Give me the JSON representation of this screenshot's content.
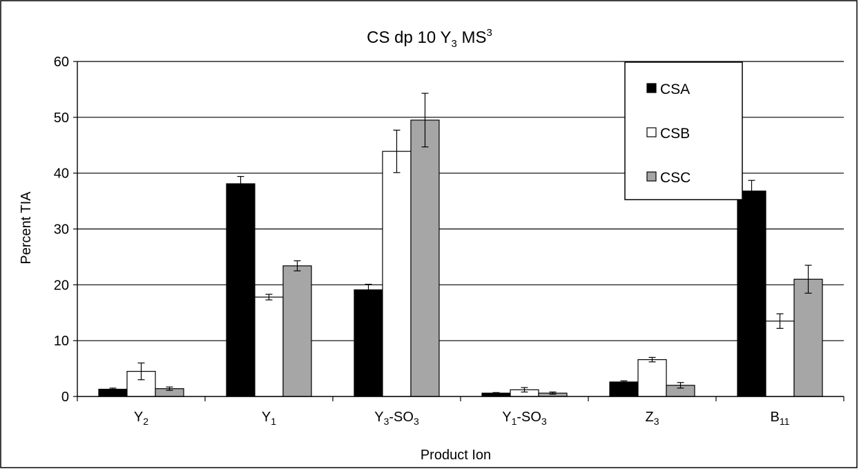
{
  "chart_data": {
    "type": "bar",
    "title": "CS dp 10 Y",
    "title_sub": "3",
    "title_mid": " MS",
    "title_sup": "3",
    "xlabel": "Product Ion",
    "ylabel": "Percent TIA",
    "ylim": [
      0,
      60
    ],
    "yticks": [
      0,
      10,
      20,
      30,
      40,
      50,
      60
    ],
    "grid": true,
    "legend_position": "top-right",
    "categories": [
      {
        "base": "Y",
        "sub": "2",
        "suffix": "",
        "suffix_sub": ""
      },
      {
        "base": "Y",
        "sub": "1",
        "suffix": "",
        "suffix_sub": ""
      },
      {
        "base": "Y",
        "sub": "3",
        "suffix": "-SO",
        "suffix_sub": "3"
      },
      {
        "base": "Y",
        "sub": "1",
        "suffix": "-SO",
        "suffix_sub": "3"
      },
      {
        "base": "Z",
        "sub": "3",
        "suffix": "",
        "suffix_sub": ""
      },
      {
        "base": "B",
        "sub": "11",
        "suffix": "",
        "suffix_sub": ""
      }
    ],
    "series": [
      {
        "name": "CSA",
        "color": "#000000",
        "values": [
          1.3,
          38.1,
          19.1,
          0.6,
          2.6,
          36.8
        ],
        "errors": [
          0.2,
          1.3,
          1.0,
          0.1,
          0.2,
          1.9
        ]
      },
      {
        "name": "CSB",
        "color": "#ffffff",
        "values": [
          4.5,
          17.8,
          43.9,
          1.2,
          6.6,
          13.5
        ],
        "errors": [
          1.5,
          0.5,
          3.8,
          0.4,
          0.4,
          1.3
        ]
      },
      {
        "name": "CSC",
        "color": "#a6a6a6",
        "values": [
          1.4,
          23.4,
          49.5,
          0.6,
          2.0,
          21.0
        ],
        "errors": [
          0.3,
          0.9,
          4.8,
          0.2,
          0.5,
          2.5
        ]
      }
    ]
  }
}
